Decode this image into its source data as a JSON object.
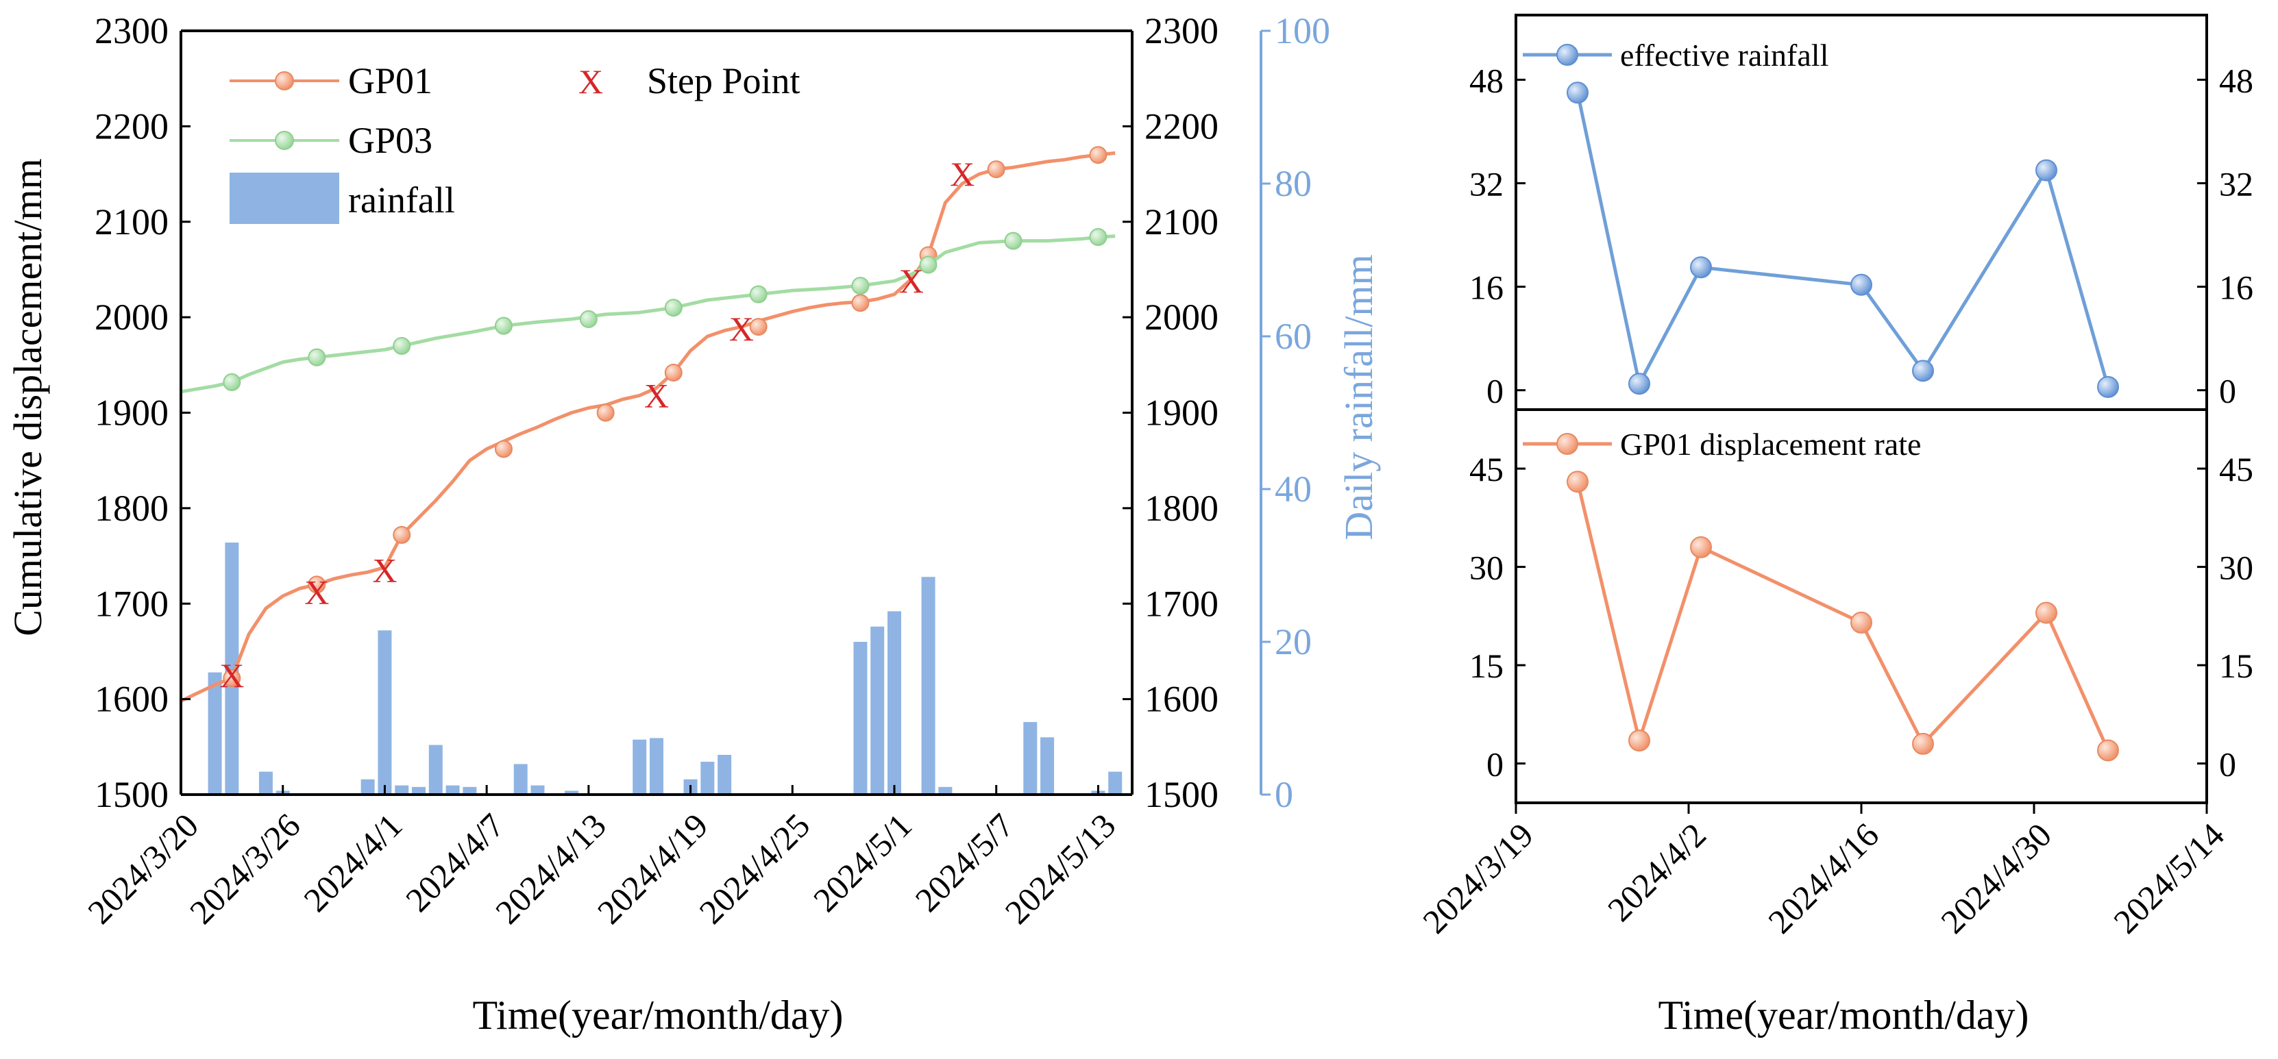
{
  "chart_data": [
    {
      "type": "line",
      "xlabel": "Time(year/month/day)",
      "ylabel": "Cumulative displacement/mm",
      "ylabel_right": "",
      "ylim": [
        1500,
        2300
      ],
      "yticks": [
        1500,
        1600,
        1700,
        1800,
        1900,
        2000,
        2100,
        2200,
        2300
      ],
      "xlim": [
        "2024-03-20",
        "2024-05-15"
      ],
      "xticks": [
        {
          "date": "2024-03-20",
          "label": "2024/3/20"
        },
        {
          "date": "2024-03-26",
          "label": "2024/3/26"
        },
        {
          "date": "2024-04-01",
          "label": "2024/4/1"
        },
        {
          "date": "2024-04-07",
          "label": "2024/4/7"
        },
        {
          "date": "2024-04-13",
          "label": "2024/4/13"
        },
        {
          "date": "2024-04-19",
          "label": "2024/4/19"
        },
        {
          "date": "2024-04-25",
          "label": "2024/4/25"
        },
        {
          "date": "2024-05-01",
          "label": "2024/5/1"
        },
        {
          "date": "2024-05-07",
          "label": "2024/5/7"
        },
        {
          "date": "2024-05-13",
          "label": "2024/5/13"
        }
      ],
      "rain_axis": {
        "label": "Daily rainfall/mm",
        "ylim": [
          0,
          100
        ],
        "yticks": [
          0,
          20,
          40,
          60,
          80,
          100
        ],
        "color": "#7aa6dc"
      },
      "series": [
        {
          "name": "GP01",
          "color": "#f2906a",
          "marker_color": "#f7b394",
          "x": [
            "2024-03-20",
            "2024-03-22",
            "2024-03-23",
            "2024-03-24",
            "2024-03-25",
            "2024-03-26",
            "2024-03-27",
            "2024-03-28",
            "2024-03-29",
            "2024-03-30",
            "2024-03-31",
            "2024-04-01",
            "2024-04-02",
            "2024-04-03",
            "2024-04-04",
            "2024-04-05",
            "2024-04-06",
            "2024-04-07",
            "2024-04-08",
            "2024-04-09",
            "2024-04-10",
            "2024-04-11",
            "2024-04-12",
            "2024-04-13",
            "2024-04-14",
            "2024-04-15",
            "2024-04-16",
            "2024-04-17",
            "2024-04-18",
            "2024-04-19",
            "2024-04-20",
            "2024-04-21",
            "2024-04-22",
            "2024-04-23",
            "2024-04-24",
            "2024-04-25",
            "2024-04-26",
            "2024-04-27",
            "2024-04-28",
            "2024-04-29",
            "2024-04-30",
            "2024-05-01",
            "2024-05-02",
            "2024-05-03",
            "2024-05-04",
            "2024-05-05",
            "2024-05-06",
            "2024-05-07",
            "2024-05-08",
            "2024-05-09",
            "2024-05-10",
            "2024-05-11",
            "2024-05-12",
            "2024-05-13",
            "2024-05-14"
          ],
          "y": [
            1598,
            1615,
            1622,
            1668,
            1695,
            1708,
            1716,
            1720,
            1726,
            1730,
            1733,
            1738,
            1772,
            1790,
            1808,
            1828,
            1850,
            1862,
            1870,
            1878,
            1885,
            1893,
            1900,
            1905,
            1908,
            1914,
            1918,
            1926,
            1942,
            1965,
            1980,
            1986,
            1990,
            1996,
            2001,
            2006,
            2010,
            2013,
            2015,
            2016,
            2019,
            2024,
            2040,
            2065,
            2120,
            2140,
            2150,
            2155,
            2157,
            2160,
            2163,
            2165,
            2168,
            2170,
            2172
          ],
          "marker_x": [
            "2024-03-23",
            "2024-03-28",
            "2024-04-02",
            "2024-04-08",
            "2024-04-14",
            "2024-04-18",
            "2024-04-23",
            "2024-04-29",
            "2024-05-03",
            "2024-05-07",
            "2024-05-13"
          ],
          "marker_y": [
            1622,
            1720,
            1772,
            1862,
            1900,
            1942,
            1990,
            2015,
            2065,
            2155,
            2170
          ]
        },
        {
          "name": "GP03",
          "color": "#a3dca3",
          "marker_color": "#c6eac6",
          "x": [
            "2024-03-20",
            "2024-03-22",
            "2024-03-23",
            "2024-03-24",
            "2024-03-26",
            "2024-03-27",
            "2024-03-28",
            "2024-03-30",
            "2024-04-01",
            "2024-04-02",
            "2024-04-03",
            "2024-04-04",
            "2024-04-06",
            "2024-04-08",
            "2024-04-10",
            "2024-04-12",
            "2024-04-14",
            "2024-04-16",
            "2024-04-18",
            "2024-04-20",
            "2024-04-22",
            "2024-04-23",
            "2024-04-25",
            "2024-04-27",
            "2024-04-29",
            "2024-05-01",
            "2024-05-02",
            "2024-05-03",
            "2024-05-04",
            "2024-05-06",
            "2024-05-08",
            "2024-05-10",
            "2024-05-12",
            "2024-05-13",
            "2024-05-14"
          ],
          "y": [
            1922,
            1928,
            1932,
            1940,
            1953,
            1956,
            1958,
            1962,
            1966,
            1970,
            1974,
            1978,
            1984,
            1991,
            1995,
            1998,
            2003,
            2005,
            2010,
            2018,
            2022,
            2024,
            2028,
            2030,
            2033,
            2038,
            2045,
            2055,
            2068,
            2078,
            2080,
            2080,
            2082,
            2084,
            2085
          ],
          "marker_x": [
            "2024-03-23",
            "2024-03-28",
            "2024-04-02",
            "2024-04-08",
            "2024-04-13",
            "2024-04-18",
            "2024-04-23",
            "2024-04-29",
            "2024-05-03",
            "2024-05-08",
            "2024-05-13"
          ],
          "marker_y": [
            1932,
            1958,
            1970,
            1991,
            1998,
            2010,
            2024,
            2033,
            2055,
            2080,
            2084
          ]
        }
      ],
      "step_points": {
        "name": "Step Point",
        "symbol": "X",
        "color": "#d62728",
        "x": [
          "2024-03-23",
          "2024-03-28",
          "2024-04-01",
          "2024-04-17",
          "2024-04-22",
          "2024-05-02",
          "2024-05-05"
        ],
        "y": [
          1625,
          1712,
          1735,
          1918,
          1988,
          2038,
          2150
        ]
      },
      "rainfall": {
        "name": "rainfall",
        "color": "#8fb4e3",
        "x": [
          "2024-03-22",
          "2024-03-23",
          "2024-03-25",
          "2024-03-26",
          "2024-03-31",
          "2024-04-01",
          "2024-04-02",
          "2024-04-03",
          "2024-04-04",
          "2024-04-05",
          "2024-04-06",
          "2024-04-09",
          "2024-04-10",
          "2024-04-12",
          "2024-04-16",
          "2024-04-17",
          "2024-04-19",
          "2024-04-20",
          "2024-04-21",
          "2024-04-29",
          "2024-04-30",
          "2024-05-01",
          "2024-05-03",
          "2024-05-04",
          "2024-05-09",
          "2024-05-10",
          "2024-05-13",
          "2024-05-14"
        ],
        "values": [
          16,
          33,
          3,
          0.5,
          2,
          21.5,
          1.2,
          1,
          6.5,
          1.2,
          1,
          4,
          1.2,
          0.5,
          7.2,
          7.4,
          2,
          4.3,
          5.2,
          20,
          22,
          24,
          28.5,
          1,
          9.5,
          7.5,
          0.5,
          3
        ]
      },
      "legend_position": "top-left"
    },
    {
      "type": "line",
      "xlabel": "",
      "ylabel": "",
      "ylim": [
        -3,
        58
      ],
      "yticks": [
        0,
        16,
        32,
        48
      ],
      "series": [
        {
          "name": "effective rainfall",
          "color": "#6f9fd8",
          "marker_color": "#9cc0ea",
          "x": [
            "2024-03-24",
            "2024-03-29",
            "2024-04-03",
            "2024-04-16",
            "2024-04-21",
            "2024-05-01",
            "2024-05-06"
          ],
          "y": [
            46,
            1,
            19,
            16.3,
            3,
            34,
            0.5
          ]
        }
      ],
      "legend_position": "top-left"
    },
    {
      "type": "line",
      "xlabel": "Time(year/month/day)",
      "ylabel": "",
      "ylim": [
        -6,
        54
      ],
      "yticks": [
        0,
        15,
        30,
        45
      ],
      "xlim": [
        "2024-03-19",
        "2024-05-14"
      ],
      "xticks": [
        {
          "date": "2024-03-19",
          "label": "2024/3/19"
        },
        {
          "date": "2024-04-02",
          "label": "2024/4/2"
        },
        {
          "date": "2024-04-16",
          "label": "2024/4/16"
        },
        {
          "date": "2024-04-30",
          "label": "2024/4/30"
        },
        {
          "date": "2024-05-14",
          "label": "2024/5/14"
        }
      ],
      "series": [
        {
          "name": "GP01 displacement rate",
          "color": "#f2906a",
          "marker_color": "#f7b394",
          "x": [
            "2024-03-24",
            "2024-03-29",
            "2024-04-03",
            "2024-04-16",
            "2024-04-21",
            "2024-05-01",
            "2024-05-06"
          ],
          "y": [
            43,
            3.5,
            33,
            21.5,
            3,
            23,
            2
          ]
        }
      ],
      "legend_position": "top-left"
    }
  ]
}
